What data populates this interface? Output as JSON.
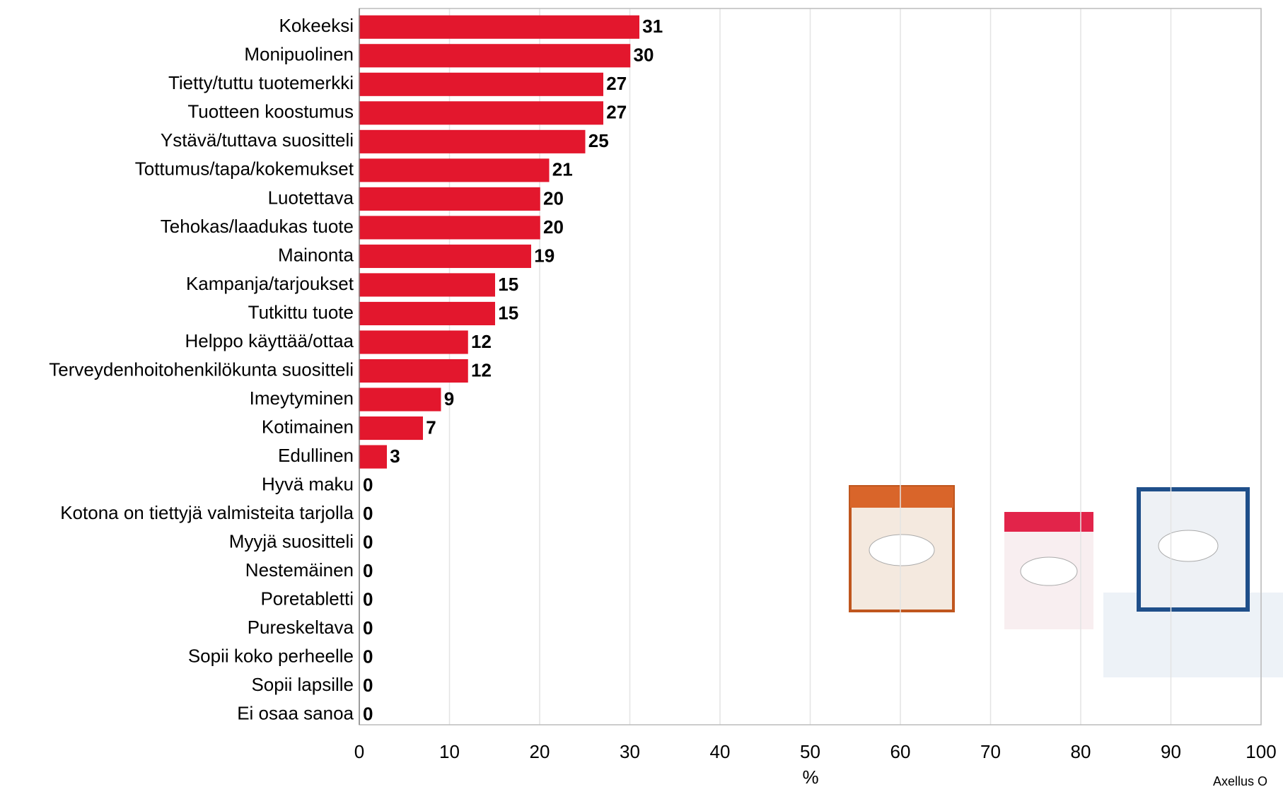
{
  "chart_data": {
    "type": "hbar",
    "categories": [
      "Kokeeksi",
      "Monipuolinen",
      "Tietty/tuttu tuotemerkki",
      "Tuotteen koostumus",
      "Ystävä/tuttava suositteli",
      "Tottumus/tapa/kokemukset",
      "Luotettava",
      "Tehokas/laadukas tuote",
      "Mainonta",
      "Kampanja/tarjoukset",
      "Tutkittu tuote",
      "Helppo käyttää/ottaa",
      "Terveydenhoitohenkilökunta suositteli",
      "Imeytyminen",
      "Kotimainen",
      "Edullinen",
      "Hyvä maku",
      "Kotona on tiettyjä valmisteita tarjolla",
      "Myyjä suositteli",
      "Nestemäinen",
      "Poretabletti",
      "Pureskeltava",
      "Sopii koko perheelle",
      "Sopii lapsille",
      "Ei osaa sanoa"
    ],
    "values": [
      31,
      30,
      27,
      27,
      25,
      21,
      20,
      20,
      19,
      15,
      15,
      12,
      12,
      9,
      7,
      3,
      0,
      0,
      0,
      0,
      0,
      0,
      0,
      0,
      0
    ],
    "color": "#e3172d",
    "xlim": [
      0,
      100
    ],
    "xticks": [
      0,
      10,
      20,
      30,
      40,
      50,
      60,
      70,
      80,
      90,
      100
    ],
    "xlabel": "%",
    "grid": true,
    "source": "Axellus O"
  }
}
